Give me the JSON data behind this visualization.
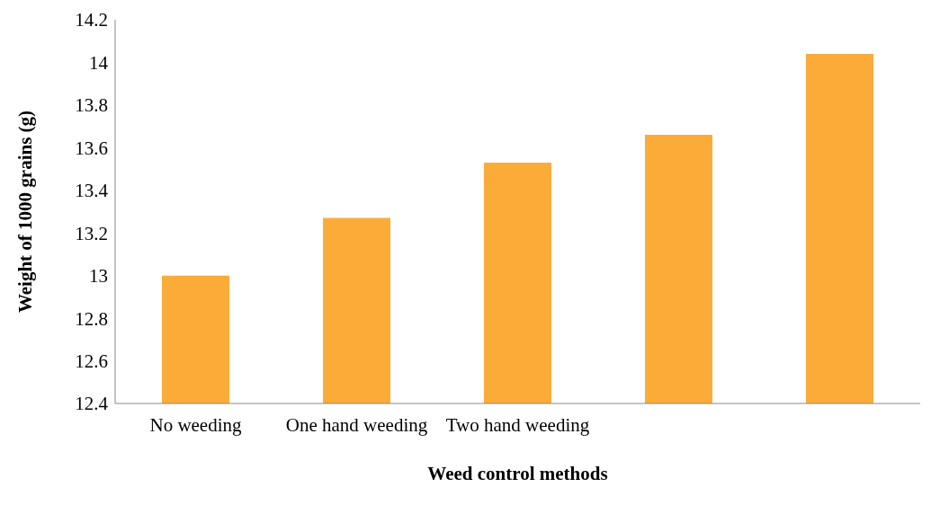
{
  "chart_data": {
    "type": "bar",
    "xlabel": "Weed control methods",
    "ylabel": "Weight of 1000 grains (g)",
    "categories": [
      "No weeding",
      "One hand weeding",
      "Two hand weeding",
      null,
      null
    ],
    "values": [
      13.0,
      13.27,
      13.53,
      13.66,
      14.04
    ],
    "color": "#fbac38",
    "ylim": [
      12.4,
      14.2
    ],
    "yticks": [
      12.4,
      12.6,
      12.8,
      13,
      13.2,
      13.4,
      13.6,
      13.8,
      14,
      14.2
    ],
    "grid": false,
    "legend": false
  }
}
